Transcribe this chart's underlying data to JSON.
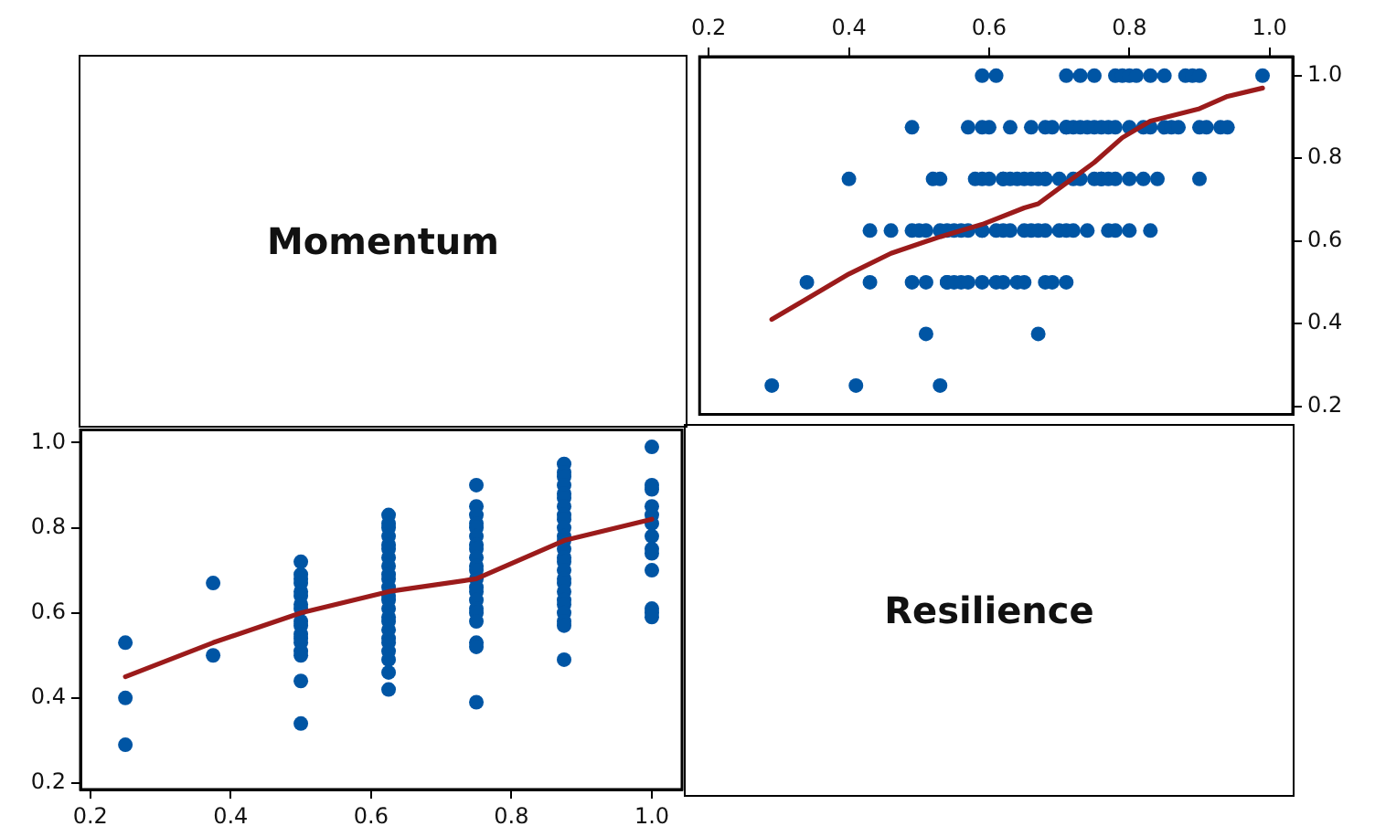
{
  "chart_data": [
    {
      "type": "other",
      "title": "Momentum"
    },
    {
      "type": "scatter",
      "grid": false,
      "legend": false,
      "xlim": [
        0.187,
        1.033
      ],
      "xticks": [
        0.2,
        0.4,
        0.6,
        0.8,
        {
          "value": 1,
          "label": "1.0"
        }
      ],
      "ylim": [
        0.18,
        1.046
      ],
      "yticks": [
        0.2,
        0.4,
        0.6,
        0.8,
        {
          "value": 1,
          "label": "1.0"
        }
      ],
      "series": [
        {
          "type": "scatter",
          "marker": "circle",
          "color": "#0055a4",
          "x": [
            0.59,
            0.61,
            0.71,
            0.73,
            0.75,
            0.78,
            0.79,
            0.8,
            0.81,
            0.83,
            0.85,
            0.88,
            0.89,
            0.9,
            0.99,
            0.49,
            0.57,
            0.59,
            0.6,
            0.63,
            0.66,
            0.68,
            0.69,
            0.71,
            0.71,
            0.72,
            0.73,
            0.74,
            0.75,
            0.76,
            0.77,
            0.78,
            0.8,
            0.82,
            0.83,
            0.85,
            0.86,
            0.87,
            0.9,
            0.91,
            0.93,
            0.94,
            0.4,
            0.52,
            0.53,
            0.58,
            0.59,
            0.6,
            0.62,
            0.62,
            0.63,
            0.64,
            0.65,
            0.66,
            0.67,
            0.68,
            0.68,
            0.7,
            0.72,
            0.73,
            0.75,
            0.76,
            0.76,
            0.77,
            0.78,
            0.8,
            0.82,
            0.84,
            0.9,
            0.43,
            0.46,
            0.49,
            0.5,
            0.51,
            0.53,
            0.54,
            0.55,
            0.56,
            0.57,
            0.59,
            0.59,
            0.61,
            0.62,
            0.63,
            0.65,
            0.66,
            0.67,
            0.68,
            0.7,
            0.71,
            0.72,
            0.74,
            0.77,
            0.78,
            0.8,
            0.83,
            0.34,
            0.43,
            0.49,
            0.51,
            0.54,
            0.54,
            0.55,
            0.56,
            0.57,
            0.59,
            0.61,
            0.62,
            0.64,
            0.65,
            0.68,
            0.69,
            0.71,
            0.51,
            0.67,
            0.29,
            0.41,
            0.53
          ],
          "values": [
            1,
            1,
            1,
            1,
            1,
            1,
            1,
            1,
            1,
            1,
            1,
            1,
            1,
            1,
            1,
            0.875,
            0.875,
            0.875,
            0.875,
            0.875,
            0.875,
            0.875,
            0.875,
            0.875,
            0.875,
            0.875,
            0.875,
            0.875,
            0.875,
            0.875,
            0.875,
            0.875,
            0.875,
            0.875,
            0.875,
            0.875,
            0.875,
            0.875,
            0.875,
            0.875,
            0.875,
            0.875,
            0.75,
            0.75,
            0.75,
            0.75,
            0.75,
            0.75,
            0.75,
            0.75,
            0.75,
            0.75,
            0.75,
            0.75,
            0.75,
            0.75,
            0.75,
            0.75,
            0.75,
            0.75,
            0.75,
            0.75,
            0.75,
            0.75,
            0.75,
            0.75,
            0.75,
            0.75,
            0.75,
            0.625,
            0.625,
            0.625,
            0.625,
            0.625,
            0.625,
            0.625,
            0.625,
            0.625,
            0.625,
            0.625,
            0.625,
            0.625,
            0.625,
            0.625,
            0.625,
            0.625,
            0.625,
            0.625,
            0.625,
            0.625,
            0.625,
            0.625,
            0.625,
            0.625,
            0.625,
            0.625,
            0.5,
            0.5,
            0.5,
            0.5,
            0.5,
            0.5,
            0.5,
            0.5,
            0.5,
            0.5,
            0.5,
            0.5,
            0.5,
            0.5,
            0.5,
            0.5,
            0.5,
            0.375,
            0.375,
            0.25,
            0.25,
            0.25
          ]
        },
        {
          "type": "line",
          "marker": "none",
          "color": "#9b1b1b",
          "line_style": "solid",
          "x": [
            0.29,
            0.34,
            0.4,
            0.46,
            0.53,
            0.59,
            0.65,
            0.67,
            0.71,
            0.75,
            0.79,
            0.83,
            0.9,
            0.94,
            0.99
          ],
          "values": [
            0.41,
            0.46,
            0.52,
            0.57,
            0.61,
            0.64,
            0.68,
            0.69,
            0.74,
            0.79,
            0.85,
            0.89,
            0.92,
            0.95,
            0.97
          ]
        }
      ]
    },
    {
      "type": "scatter",
      "grid": false,
      "legend": false,
      "xlim": [
        0.186,
        1.043
      ],
      "xticks": [
        0.2,
        0.4,
        0.6,
        0.8,
        {
          "value": 1,
          "label": "1.0"
        }
      ],
      "ylim": [
        0.185,
        1.03
      ],
      "yticks": [
        0.2,
        0.4,
        0.6,
        0.8,
        {
          "value": 1,
          "label": "1.0"
        }
      ],
      "series": [
        {
          "type": "scatter",
          "marker": "circle",
          "color": "#0055a4",
          "x": [
            0.25,
            0.25,
            0.25,
            0.375,
            0.375,
            0.5,
            0.5,
            0.5,
            0.5,
            0.5,
            0.5,
            0.5,
            0.5,
            0.5,
            0.5,
            0.5,
            0.5,
            0.5,
            0.5,
            0.5,
            0.5,
            0.5,
            0.625,
            0.625,
            0.625,
            0.625,
            0.625,
            0.625,
            0.625,
            0.625,
            0.625,
            0.625,
            0.625,
            0.625,
            0.625,
            0.625,
            0.625,
            0.625,
            0.625,
            0.625,
            0.625,
            0.625,
            0.625,
            0.625,
            0.625,
            0.75,
            0.75,
            0.75,
            0.75,
            0.75,
            0.75,
            0.75,
            0.75,
            0.75,
            0.75,
            0.75,
            0.75,
            0.75,
            0.75,
            0.75,
            0.75,
            0.75,
            0.75,
            0.75,
            0.75,
            0.75,
            0.875,
            0.875,
            0.875,
            0.875,
            0.875,
            0.875,
            0.875,
            0.875,
            0.875,
            0.875,
            0.875,
            0.875,
            0.875,
            0.875,
            0.875,
            0.875,
            0.875,
            0.875,
            0.875,
            0.875,
            0.875,
            0.875,
            0.875,
            0.875,
            0.875,
            1,
            1,
            1,
            1,
            1,
            1,
            1,
            1,
            1,
            1,
            1,
            1,
            1
          ],
          "values": [
            0.53,
            0.4,
            0.29,
            0.67,
            0.5,
            0.72,
            0.69,
            0.68,
            0.67,
            0.65,
            0.64,
            0.62,
            0.61,
            0.58,
            0.57,
            0.55,
            0.54,
            0.53,
            0.51,
            0.5,
            0.44,
            0.34,
            0.83,
            0.81,
            0.8,
            0.78,
            0.76,
            0.75,
            0.73,
            0.71,
            0.69,
            0.68,
            0.66,
            0.64,
            0.63,
            0.61,
            0.59,
            0.58,
            0.56,
            0.54,
            0.53,
            0.51,
            0.49,
            0.46,
            0.42,
            0.9,
            0.85,
            0.83,
            0.81,
            0.8,
            0.78,
            0.76,
            0.75,
            0.73,
            0.71,
            0.7,
            0.68,
            0.66,
            0.65,
            0.63,
            0.61,
            0.6,
            0.58,
            0.53,
            0.52,
            0.39,
            0.95,
            0.93,
            0.92,
            0.9,
            0.88,
            0.87,
            0.85,
            0.83,
            0.82,
            0.8,
            0.78,
            0.77,
            0.75,
            0.73,
            0.72,
            0.7,
            0.68,
            0.67,
            0.65,
            0.63,
            0.62,
            0.6,
            0.58,
            0.57,
            0.49,
            0.99,
            0.9,
            0.89,
            0.85,
            0.83,
            0.81,
            0.78,
            0.75,
            0.74,
            0.7,
            0.61,
            0.6,
            0.59
          ]
        },
        {
          "type": "line",
          "marker": "none",
          "color": "#9b1b1b",
          "line_style": "solid",
          "x": [
            0.25,
            0.375,
            0.5,
            0.625,
            0.75,
            0.875,
            1
          ],
          "values": [
            0.45,
            0.53,
            0.6,
            0.65,
            0.68,
            0.77,
            0.82
          ]
        }
      ]
    },
    {
      "type": "other",
      "title": "Resilience"
    }
  ]
}
